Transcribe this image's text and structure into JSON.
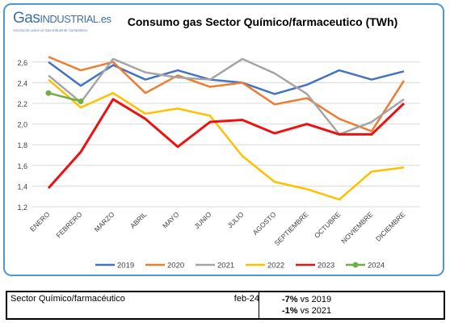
{
  "logo": {
    "brand_prefix": "Gas",
    "brand_main": "INDUSTRIAL",
    "brand_suffix": ".es",
    "tagline": "Asociación para un Gas Industrial Competitivo"
  },
  "chart_data": {
    "type": "line",
    "title": "Consumo gas Sector Químico/farmaceutico (TWh)",
    "categories": [
      "ENERO",
      "FEBRERO",
      "MARZO",
      "ABRIL",
      "MAYO",
      "JUNIO",
      "JULIO",
      "AGOSTO",
      "SEPTIEMBRE",
      "OCTUBRE",
      "NOVIEMBRE",
      "DICIEMBRE"
    ],
    "ylim": [
      1.2,
      2.7
    ],
    "yticks": [
      "1,2",
      "1,4",
      "1,6",
      "1,8",
      "2,0",
      "2,2",
      "2,4",
      "2,6"
    ],
    "ytick_values": [
      1.2,
      1.4,
      1.6,
      1.8,
      2.0,
      2.2,
      2.4,
      2.6
    ],
    "grid": true,
    "legend_position": "bottom",
    "series": [
      {
        "name": "2019",
        "color": "#4472c4",
        "values": [
          2.6,
          2.37,
          2.57,
          2.43,
          2.52,
          2.43,
          2.4,
          2.29,
          2.38,
          2.52,
          2.43,
          2.51
        ]
      },
      {
        "name": "2020",
        "color": "#ed7d31",
        "values": [
          2.65,
          2.52,
          2.6,
          2.3,
          2.47,
          2.36,
          2.4,
          2.19,
          2.25,
          2.05,
          1.93,
          2.42
        ]
      },
      {
        "name": "2021",
        "color": "#a5a5a5",
        "values": [
          2.47,
          2.21,
          2.63,
          2.5,
          2.45,
          2.43,
          2.63,
          2.49,
          2.29,
          1.9,
          2.02,
          2.24
        ]
      },
      {
        "name": "2022",
        "color": "#ffc000",
        "values": [
          2.43,
          2.16,
          2.3,
          2.1,
          2.15,
          2.08,
          1.69,
          1.44,
          1.37,
          1.27,
          1.54,
          1.58
        ]
      },
      {
        "name": "2023",
        "color": "#ee1111",
        "values": [
          1.38,
          1.73,
          2.24,
          2.05,
          1.78,
          2.02,
          2.04,
          1.91,
          2.0,
          1.9,
          1.9,
          2.2
        ]
      },
      {
        "name": "2024",
        "color": "#70ad47",
        "values": [
          2.3,
          2.22,
          null,
          null,
          null,
          null,
          null,
          null,
          null,
          null,
          null,
          null
        ]
      }
    ]
  },
  "footer": {
    "sector": "Sector Químico/farmacéutico",
    "date": "feb-24",
    "comparisons": [
      {
        "value": "-7%",
        "label": "vs 2019"
      },
      {
        "value": "-1%",
        "label": "vs 2021"
      }
    ]
  }
}
